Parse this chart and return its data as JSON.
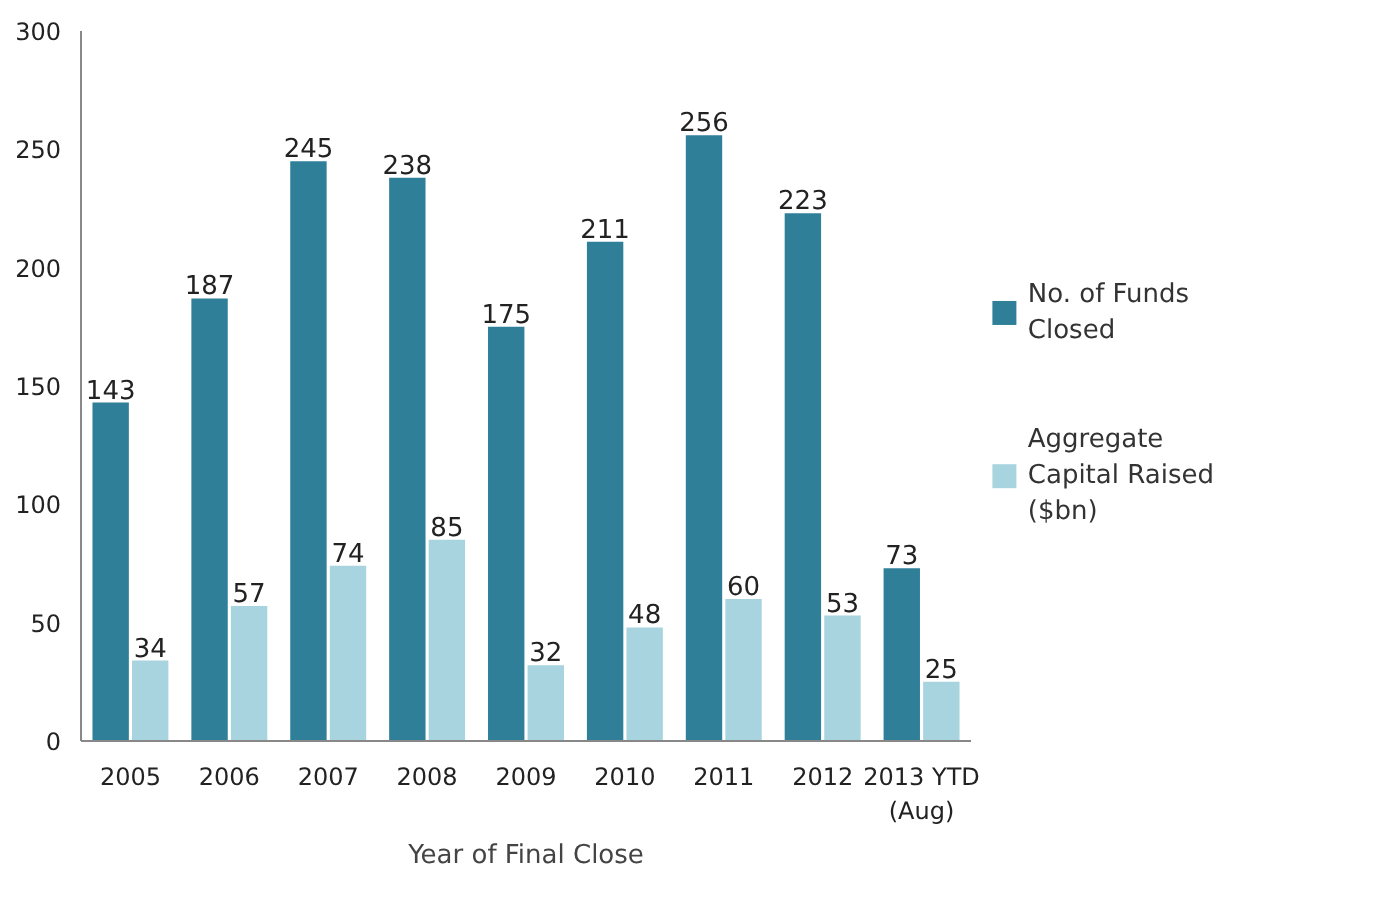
{
  "chart_data": {
    "type": "bar",
    "xlabel": "Year of Final Close",
    "categories": [
      "2005",
      "2006",
      "2007",
      "2008",
      "2009",
      "2010",
      "2011",
      "2012",
      "2013 YTD (Aug)"
    ],
    "series": [
      {
        "name": "No. of Funds Closed",
        "color": "#2f7f99",
        "values": [
          143,
          187,
          245,
          238,
          175,
          211,
          256,
          223,
          73
        ]
      },
      {
        "name": "Aggregate Capital Raised ($bn)",
        "color": "#a8d4df",
        "values": [
          34,
          57,
          74,
          85,
          32,
          48,
          60,
          53,
          25
        ]
      }
    ],
    "ylim": [
      0,
      300
    ],
    "yticks": [
      0,
      50,
      100,
      150,
      200,
      250,
      300
    ],
    "grid": false,
    "legend": "right",
    "data_labels": true
  }
}
